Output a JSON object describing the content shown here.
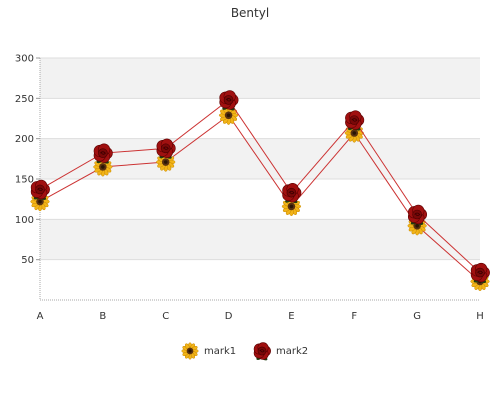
{
  "chart_data": {
    "type": "line",
    "title": "Bentyl",
    "xlabel": "",
    "ylabel": "",
    "categories": [
      "A",
      "B",
      "C",
      "D",
      "E",
      "F",
      "G",
      "H"
    ],
    "ylim": [
      0,
      300
    ],
    "yticks": [
      50,
      100,
      150,
      200,
      250,
      300
    ],
    "grid": true,
    "legend_position": "bottom",
    "series": [
      {
        "name": "mark1",
        "values": [
          122,
          165,
          171,
          229,
          116,
          207,
          92,
          23
        ],
        "color": "#cc3333",
        "marker": "sunflower-icon"
      },
      {
        "name": "mark2",
        "values": [
          137,
          182,
          188,
          248,
          133,
          223,
          106,
          34
        ],
        "color": "#cc3333",
        "marker": "rose-icon"
      }
    ]
  }
}
